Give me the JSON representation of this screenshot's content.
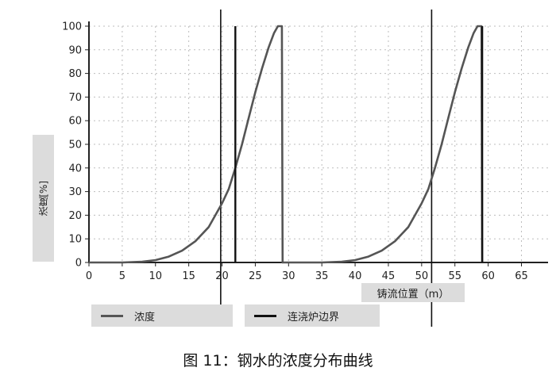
{
  "chart_data": {
    "type": "line",
    "caption": "图 11：钢水的浓度分布曲线",
    "xlabel": "铸流位置（m）",
    "ylabel": "浓度[%]",
    "xlim": [
      0,
      69
    ],
    "ylim": [
      0,
      100
    ],
    "x_ticks": [
      0,
      5,
      10,
      15,
      20,
      25,
      30,
      35,
      40,
      45,
      50,
      55,
      60,
      65
    ],
    "y_ticks": [
      0,
      10,
      20,
      30,
      40,
      50,
      60,
      70,
      80,
      90,
      100
    ],
    "grid": true,
    "legend_position": "bottom",
    "series": [
      {
        "name": "浓度",
        "color": "#555555",
        "x": [
          0,
          5,
          8,
          10,
          12,
          14,
          16,
          18,
          20,
          21,
          22,
          23,
          24,
          25,
          26,
          27,
          27.8,
          28.4,
          29,
          29.1,
          30,
          35,
          38,
          40,
          42,
          44,
          46,
          48,
          50,
          51,
          52,
          53,
          54,
          55,
          56,
          57,
          57.8,
          58.4,
          59,
          59.1
        ],
        "y": [
          0,
          0,
          0.3,
          1,
          2.5,
          5,
          9,
          15,
          25,
          31,
          40,
          50,
          61,
          72,
          82,
          91,
          97,
          100,
          100,
          0,
          0,
          0,
          0.3,
          1,
          2.5,
          5,
          9,
          15,
          25,
          31,
          40,
          50,
          61,
          72,
          82,
          91,
          97,
          100,
          100,
          0
        ]
      },
      {
        "name": "连浇炉边界",
        "color": "#111111",
        "x": [
          22,
          22,
          null,
          59.1,
          59.1
        ],
        "y": [
          0,
          100,
          null,
          0,
          100
        ]
      }
    ],
    "annotations": [
      {
        "type": "vline",
        "x": 19.8
      },
      {
        "type": "vline",
        "x": 51.5
      }
    ]
  }
}
